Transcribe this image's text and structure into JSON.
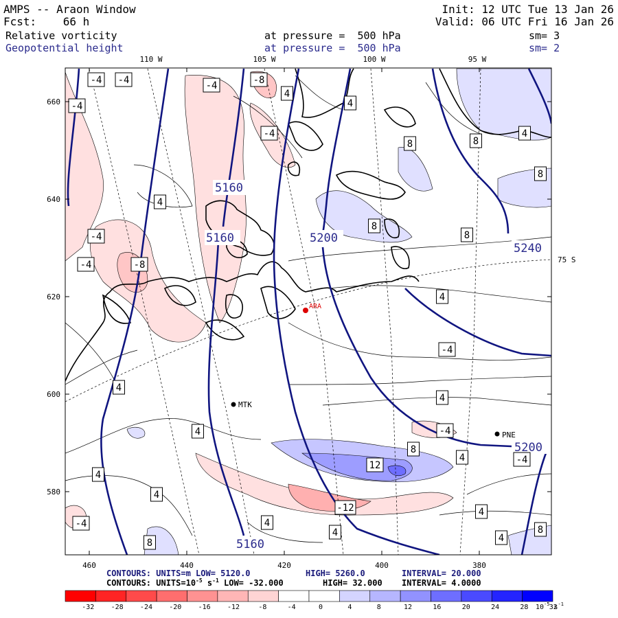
{
  "header": {
    "model": "AMPS -- Araon Window",
    "forecast": "Fcst:    66 h",
    "init": "Init: 12 UTC Tue 13 Jan 26",
    "valid": "Valid: 06 UTC Fri 16 Jan 26",
    "field1": {
      "name": "Relative vorticity",
      "pressure": "at pressure =  500 hPa",
      "sm": "sm= 3"
    },
    "field2": {
      "name": "Geopotential height",
      "pressure": "at pressure =  500 hPa",
      "sm": "sm= 2"
    }
  },
  "lon_labels": [
    "110 W",
    "105 W",
    "100 W",
    "95 W"
  ],
  "lat_label": "75 S",
  "y_ticks": [
    "660",
    "640",
    "620",
    "600",
    "580"
  ],
  "x_ticks": [
    "460",
    "440",
    "420",
    "400",
    "380"
  ],
  "stations": [
    {
      "label": "ARA",
      "color": "#dd0000"
    },
    {
      "label": "MTK",
      "color": "#000000"
    },
    {
      "label": "PNE",
      "color": "#000000"
    }
  ],
  "height_labels": [
    "5160",
    "5160",
    "5200",
    "5240",
    "5200",
    "5160"
  ],
  "vort_labels": [
    "-4",
    "-4",
    "-4",
    "-8",
    "-4",
    "-4",
    "8",
    "4",
    "8",
    "8",
    "4",
    "-4",
    "-8",
    "-4",
    "4",
    "8",
    "8",
    "4",
    "4",
    "-4",
    "4",
    "4",
    "4",
    "-4",
    "8",
    "4",
    "12",
    "-4",
    "4",
    "4",
    "-12",
    "4",
    "4",
    "4",
    "-4",
    "8",
    "4",
    "8"
  ],
  "footer": {
    "line1": {
      "label": "CONTOURS:  UNITS=m  LOW=  5120.0",
      "high": "HIGH=  5260.0",
      "interval": "INTERVAL=    20.000"
    },
    "line2": {
      "label": "CONTOURS:  UNITS=10",
      "exp": "-5",
      "unit": " s",
      "unitexp": "-1",
      "low": "  LOW= -32.000",
      "high": "HIGH=  32.000",
      "interval": "INTERVAL=   4.0000"
    }
  },
  "colorbar": {
    "ticks": [
      "-32",
      "-28",
      "-24",
      "-20",
      "-16",
      "-12",
      "-8",
      "-4",
      "0",
      "4",
      "8",
      "12",
      "16",
      "20",
      "24",
      "28",
      "32"
    ],
    "unit": "10",
    "unit_exp": "-5",
    "unit_s": " s",
    "unit_s_exp": "-1",
    "colors": [
      "#ff0000",
      "#ff2424",
      "#ff4a4a",
      "#ff6e6e",
      "#ff9292",
      "#ffb6b6",
      "#ffd4d4",
      "#ffffff",
      "#ffffff",
      "#d4d4ff",
      "#b6b6ff",
      "#9292ff",
      "#6e6eff",
      "#4a4aff",
      "#2424ff",
      "#0000ff"
    ]
  }
}
